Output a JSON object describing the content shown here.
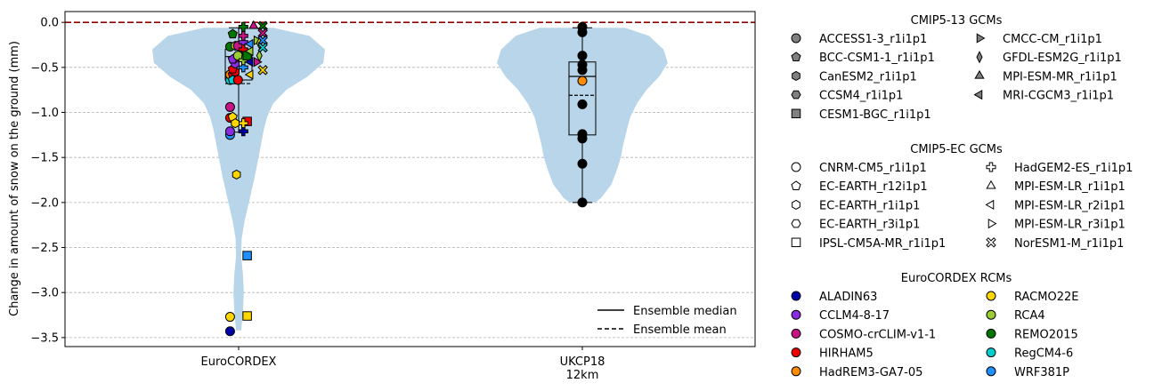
{
  "chart_data": {
    "type": "violin",
    "ylabel": "Change in amount of snow on the ground (mm)",
    "ylim": [
      -3.6,
      0.12
    ],
    "yticks": [
      0.0,
      -0.5,
      -1.0,
      -1.5,
      -2.0,
      -2.5,
      -3.0,
      -3.5
    ],
    "ytick_labels": [
      "0.0",
      "−0.5",
      "−1.0",
      "−1.5",
      "−2.0",
      "−2.5",
      "−3.0",
      "−3.5"
    ],
    "grid": "horizontal dashed",
    "zero_line_color": "#8b0000",
    "violin_color": "#b8d5e9",
    "categories": [
      {
        "key": "euro",
        "label_lines": [
          "EuroCORDEX"
        ]
      },
      {
        "key": "ukcp",
        "label_lines": [
          "UKCP18",
          "12km"
        ]
      }
    ],
    "groups": {
      "euro": {
        "median": -0.38,
        "mean": -0.68,
        "q1": -0.64,
        "q3": -0.3,
        "whisker_low": -1.22,
        "whisker_high": -0.06,
        "violin": [
          [
            -0.06,
            0.4
          ],
          [
            -0.15,
            0.82
          ],
          [
            -0.3,
            1.0
          ],
          [
            -0.45,
            0.98
          ],
          [
            -0.6,
            0.8
          ],
          [
            -0.75,
            0.55
          ],
          [
            -0.9,
            0.4
          ],
          [
            -1.05,
            0.33
          ],
          [
            -1.2,
            0.29
          ],
          [
            -1.4,
            0.25
          ],
          [
            -1.7,
            0.19
          ],
          [
            -2.0,
            0.12
          ],
          [
            -2.2,
            0.07
          ],
          [
            -2.4,
            0.035
          ],
          [
            -2.6,
            0.03
          ],
          [
            -2.8,
            0.05
          ],
          [
            -3.0,
            0.06
          ],
          [
            -3.2,
            0.05
          ],
          [
            -3.42,
            0.03
          ]
        ]
      },
      "ukcp": {
        "median": -0.6,
        "mean": -0.81,
        "q1": -1.25,
        "q3": -0.44,
        "whisker_low": -2.0,
        "whisker_high": -0.06,
        "violin": [
          [
            -0.06,
            0.5
          ],
          [
            -0.15,
            0.78
          ],
          [
            -0.3,
            0.95
          ],
          [
            -0.45,
            1.0
          ],
          [
            -0.6,
            0.9
          ],
          [
            -0.75,
            0.75
          ],
          [
            -0.9,
            0.64
          ],
          [
            -1.05,
            0.56
          ],
          [
            -1.2,
            0.52
          ],
          [
            -1.35,
            0.48
          ],
          [
            -1.5,
            0.45
          ],
          [
            -1.65,
            0.4
          ],
          [
            -1.8,
            0.34
          ],
          [
            -1.95,
            0.22
          ],
          [
            -2.0,
            0.15
          ]
        ]
      }
    },
    "points": [
      {
        "g": "euro",
        "x": -0.4,
        "y": -3.43,
        "m": "o",
        "c": "#0000aa"
      },
      {
        "g": "euro",
        "x": -0.4,
        "y": -3.27,
        "m": "o",
        "c": "#ffd700"
      },
      {
        "g": "euro",
        "x": 0.4,
        "y": -3.26,
        "m": "s",
        "c": "#ffd700"
      },
      {
        "g": "euro",
        "x": 0.4,
        "y": -2.59,
        "m": "s",
        "c": "#1e90ff"
      },
      {
        "g": "euro",
        "x": -0.1,
        "y": -1.69,
        "m": "h",
        "c": "#ffd700"
      },
      {
        "g": "euro",
        "x": -0.4,
        "y": -1.25,
        "m": "o",
        "c": "#1e90ff"
      },
      {
        "g": "euro",
        "x": -0.4,
        "y": -1.21,
        "m": "o",
        "c": "#8a2be2"
      },
      {
        "g": "euro",
        "x": 0.22,
        "y": -1.21,
        "m": "P",
        "c": "#0000aa"
      },
      {
        "g": "euro",
        "x": 0.4,
        "y": -1.1,
        "m": "s",
        "c": "#ee0000"
      },
      {
        "g": "euro",
        "x": 0.22,
        "y": -1.12,
        "m": "P",
        "c": "#ffd700"
      },
      {
        "g": "euro",
        "x": -0.4,
        "y": -1.06,
        "m": "o",
        "c": "#ee0000"
      },
      {
        "g": "euro",
        "x": -0.28,
        "y": -1.05,
        "m": "p",
        "c": "#ffd700"
      },
      {
        "g": "euro",
        "x": -0.16,
        "y": -1.12,
        "m": "h",
        "c": "#ffd700"
      },
      {
        "g": "euro",
        "x": -0.4,
        "y": -0.94,
        "m": "o",
        "c": "#c71585"
      },
      {
        "g": "euro",
        "x": -0.4,
        "y": -0.64,
        "m": "o",
        "c": "#00ced1"
      },
      {
        "g": "euro",
        "x": -0.4,
        "y": -0.58,
        "m": "o",
        "c": "#ff8c00"
      },
      {
        "g": "euro",
        "x": -0.28,
        "y": -0.58,
        "m": "p",
        "c": "#ee0000"
      },
      {
        "g": "euro",
        "x": -0.28,
        "y": -0.64,
        "m": "p",
        "c": "#00ced1"
      },
      {
        "g": "euro",
        "x": -0.16,
        "y": -0.55,
        "m": "h",
        "c": "#ee0000"
      },
      {
        "g": "euro",
        "x": -0.03,
        "y": -0.64,
        "m": "o",
        "c": "#ee0000"
      },
      {
        "g": "euro",
        "x": -0.28,
        "y": -0.52,
        "m": "p",
        "c": "#ee0000"
      },
      {
        "g": "euro",
        "x": -0.16,
        "y": -0.46,
        "m": "h",
        "c": "#8a2be2"
      },
      {
        "g": "euro",
        "x": -0.16,
        "y": -0.4,
        "m": "h",
        "c": "#c71585"
      },
      {
        "g": "euro",
        "x": -0.28,
        "y": -0.41,
        "m": "p",
        "c": "#8a2be2"
      },
      {
        "g": "euro",
        "x": -0.03,
        "y": -0.37,
        "m": "o",
        "c": "#9acd32"
      },
      {
        "g": "euro",
        "x": 0.22,
        "y": -0.5,
        "m": "P",
        "c": "#1e90ff"
      },
      {
        "g": "euro",
        "x": 0.22,
        "y": -0.42,
        "m": "P",
        "c": "#9acd32"
      },
      {
        "g": "euro",
        "x": -0.4,
        "y": -0.27,
        "m": "o",
        "c": "#007700"
      },
      {
        "g": "euro",
        "x": -0.16,
        "y": -0.26,
        "m": "h",
        "c": "#9acd32"
      },
      {
        "g": "euro",
        "x": -0.03,
        "y": -0.26,
        "m": "o",
        "c": "#c71585"
      },
      {
        "g": "euro",
        "x": -0.28,
        "y": -0.13,
        "m": "p",
        "c": "#007700"
      },
      {
        "g": "euro",
        "x": 0.22,
        "y": -0.22,
        "m": "P",
        "c": "#8a2be2"
      },
      {
        "g": "euro",
        "x": 0.22,
        "y": -0.3,
        "m": "P",
        "c": "#ee0000"
      },
      {
        "g": "euro",
        "x": 0.22,
        "y": -0.15,
        "m": "P",
        "c": "#c71585"
      },
      {
        "g": "euro",
        "x": 0.22,
        "y": -0.05,
        "m": "P",
        "c": "#007700"
      },
      {
        "g": "euro",
        "x": 0.4,
        "y": -0.37,
        "m": "s",
        "c": "#007700"
      },
      {
        "g": "euro",
        "x": 0.55,
        "y": -0.24,
        "m": "<",
        "c": "#1e90ff"
      },
      {
        "g": "euro",
        "x": 0.55,
        "y": -0.32,
        "m": "<",
        "c": "#9acd32"
      },
      {
        "g": "euro",
        "x": 0.55,
        "y": -0.44,
        "m": "<",
        "c": "#0000aa"
      },
      {
        "g": "euro",
        "x": 0.55,
        "y": -0.58,
        "m": "<",
        "c": "#ffd700"
      },
      {
        "g": "euro",
        "x": 0.7,
        "y": -0.04,
        "m": "^",
        "c": "#c71585"
      },
      {
        "g": "euro",
        "x": 0.84,
        "y": -0.2,
        "m": ">",
        "c": "#9acd32"
      },
      {
        "g": "euro",
        "x": 0.84,
        "y": -0.44,
        "m": ">",
        "c": "#c71585"
      },
      {
        "g": "euro",
        "x": 0.97,
        "y": -0.23,
        "m": "d",
        "c": "#ffd700"
      },
      {
        "g": "euro",
        "x": 0.97,
        "y": -0.37,
        "m": "d",
        "c": "#9acd32"
      },
      {
        "g": "euro",
        "x": 1.13,
        "y": -0.04,
        "m": "X",
        "c": "#007700"
      },
      {
        "g": "euro",
        "x": 1.13,
        "y": -0.12,
        "m": "X",
        "c": "#c71585"
      },
      {
        "g": "euro",
        "x": 1.13,
        "y": -0.2,
        "m": "X",
        "c": "#1e90ff"
      },
      {
        "g": "euro",
        "x": 1.13,
        "y": -0.28,
        "m": "X",
        "c": "#00ced1"
      },
      {
        "g": "euro",
        "x": 1.13,
        "y": -0.53,
        "m": "X",
        "c": "#ffd700"
      },
      {
        "g": "ukcp",
        "x": 0,
        "y": -0.05,
        "m": "o",
        "c": "#000000"
      },
      {
        "g": "ukcp",
        "x": 0,
        "y": -0.11,
        "m": "o",
        "c": "#000000"
      },
      {
        "g": "ukcp",
        "x": 0,
        "y": -0.37,
        "m": "o",
        "c": "#000000"
      },
      {
        "g": "ukcp",
        "x": 0,
        "y": -0.47,
        "m": "o",
        "c": "#000000"
      },
      {
        "g": "ukcp",
        "x": 0,
        "y": -0.53,
        "m": "o",
        "c": "#000000"
      },
      {
        "g": "ukcp",
        "x": 0,
        "y": -0.65,
        "m": "o",
        "c": "#ff8c00"
      },
      {
        "g": "ukcp",
        "x": 0,
        "y": -0.91,
        "m": "o",
        "c": "#000000"
      },
      {
        "g": "ukcp",
        "x": 0,
        "y": -1.24,
        "m": "o",
        "c": "#000000"
      },
      {
        "g": "ukcp",
        "x": 0,
        "y": -1.29,
        "m": "o",
        "c": "#000000"
      },
      {
        "g": "ukcp",
        "x": 0,
        "y": -1.57,
        "m": "o",
        "c": "#000000"
      },
      {
        "g": "ukcp",
        "x": 0,
        "y": -2.0,
        "m": "o",
        "c": "#000000"
      }
    ],
    "ensemble_legend": [
      {
        "label": "Ensemble median",
        "style": "solid"
      },
      {
        "label": "Ensemble mean",
        "style": "dashed"
      }
    ],
    "legend_sections": [
      {
        "title": "CMIP5-13 GCMs",
        "items": [
          {
            "label": "ACCESS1-3_r1i1p1",
            "m": "o",
            "fill": "#808080"
          },
          {
            "label": "BCC-CSM1-1_r1i1p1",
            "m": "p",
            "fill": "#808080"
          },
          {
            "label": "CanESM2_r1i1p1",
            "m": "h",
            "fill": "#808080"
          },
          {
            "label": "CCSM4_r1i1p1",
            "m": "h2",
            "fill": "#808080"
          },
          {
            "label": "CESM1-BGC_r1i1p1",
            "m": "s",
            "fill": "#808080"
          },
          {
            "label": "CMCC-CM_r1i1p1",
            "m": ">",
            "fill": "#808080"
          },
          {
            "label": "GFDL-ESM2G_r1i1p1",
            "m": "d",
            "fill": "#808080"
          },
          {
            "label": "MPI-ESM-MR_r1i1p1",
            "m": "^",
            "fill": "#808080"
          },
          {
            "label": "MRI-CGCM3_r1i1p1",
            "m": "<",
            "fill": "#808080"
          }
        ]
      },
      {
        "title": "CMIP5-EC GCMs",
        "items": [
          {
            "label": "CNRM-CM5_r1i1p1",
            "m": "o",
            "fill": "none"
          },
          {
            "label": "EC-EARTH_r12i1p1",
            "m": "p",
            "fill": "none"
          },
          {
            "label": "EC-EARTH_r1i1p1",
            "m": "h",
            "fill": "none"
          },
          {
            "label": "EC-EARTH_r3i1p1",
            "m": "h2",
            "fill": "none"
          },
          {
            "label": "IPSL-CM5A-MR_r1i1p1",
            "m": "s",
            "fill": "none"
          },
          {
            "label": "HadGEM2-ES_r1i1p1",
            "m": "P",
            "fill": "none"
          },
          {
            "label": "MPI-ESM-LR_r1i1p1",
            "m": "^",
            "fill": "none"
          },
          {
            "label": "MPI-ESM-LR_r2i1p1",
            "m": "<",
            "fill": "none"
          },
          {
            "label": "MPI-ESM-LR_r3i1p1",
            "m": ">",
            "fill": "none"
          },
          {
            "label": "NorESM1-M_r1i1p1",
            "m": "X",
            "fill": "none"
          }
        ]
      },
      {
        "title": "EuroCORDEX RCMs",
        "items": [
          {
            "label": "ALADIN63",
            "m": "o",
            "fill": "#0000aa"
          },
          {
            "label": "CCLM4-8-17",
            "m": "o",
            "fill": "#8a2be2"
          },
          {
            "label": "COSMO-crCLIM-v1-1",
            "m": "o",
            "fill": "#c71585"
          },
          {
            "label": "HIRHAM5",
            "m": "o",
            "fill": "#ee0000"
          },
          {
            "label": "HadREM3-GA7-05",
            "m": "o",
            "fill": "#ff8c00"
          },
          {
            "label": "RACMO22E",
            "m": "o",
            "fill": "#ffd700"
          },
          {
            "label": "RCA4",
            "m": "o",
            "fill": "#9acd32"
          },
          {
            "label": "REMO2015",
            "m": "o",
            "fill": "#007700"
          },
          {
            "label": "RegCM4-6",
            "m": "o",
            "fill": "#00ced1"
          },
          {
            "label": "WRF381P",
            "m": "o",
            "fill": "#1e90ff"
          }
        ]
      }
    ]
  }
}
